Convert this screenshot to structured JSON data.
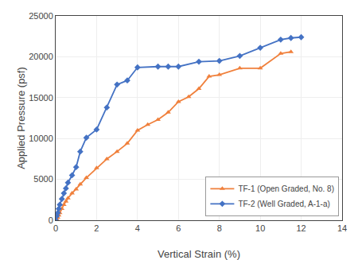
{
  "chart_data": {
    "type": "line",
    "xlabel": "Vertical Strain (%)",
    "ylabel": "Applied Pressure (psf)",
    "series": [
      {
        "name": "TF-1 (Open Graded, No. 8)",
        "color": "#f0803c",
        "marker": "triangle-up",
        "x": [
          0.0,
          0.05,
          0.1,
          0.15,
          0.2,
          0.3,
          0.4,
          0.5,
          0.6,
          0.8,
          1.0,
          1.2,
          1.5,
          2.0,
          2.5,
          3.0,
          3.5,
          4.0,
          4.5,
          5.0,
          5.5,
          6.0,
          6.5,
          7.0,
          7.5,
          8.0,
          9.0,
          10.0,
          11.0,
          11.5
        ],
        "values": [
          0,
          150,
          350,
          600,
          900,
          1400,
          1900,
          2300,
          2700,
          3300,
          3800,
          4400,
          5200,
          6400,
          7500,
          8400,
          9400,
          11000,
          11700,
          12300,
          13200,
          14500,
          15100,
          16100,
          17600,
          17800,
          18600,
          18600,
          20400,
          20600
        ]
      },
      {
        "name": "TF-2 (Well Graded, A-1-a)",
        "color": "#4472c4",
        "marker": "diamond",
        "x": [
          0.0,
          0.05,
          0.1,
          0.15,
          0.2,
          0.3,
          0.4,
          0.5,
          0.6,
          0.8,
          1.0,
          1.2,
          1.5,
          2.0,
          2.5,
          3.0,
          3.5,
          4.0,
          5.0,
          5.5,
          6.0,
          7.0,
          8.0,
          9.0,
          10.0,
          11.0,
          11.5,
          12.0
        ],
        "values": [
          0,
          500,
          900,
          1400,
          1900,
          2600,
          3300,
          3900,
          4600,
          5500,
          6500,
          8400,
          10100,
          11100,
          13800,
          16600,
          17100,
          18700,
          18800,
          18800,
          18800,
          19400,
          19500,
          20100,
          21100,
          22100,
          22300,
          22400
        ]
      }
    ],
    "xlim": [
      0,
      14
    ],
    "ylim": [
      0,
      25000
    ],
    "xticks": [
      0,
      2,
      4,
      6,
      8,
      10,
      12,
      14
    ],
    "yticks": [
      0,
      5000,
      10000,
      15000,
      20000,
      25000
    ],
    "grid": true,
    "legend": "lower right"
  }
}
